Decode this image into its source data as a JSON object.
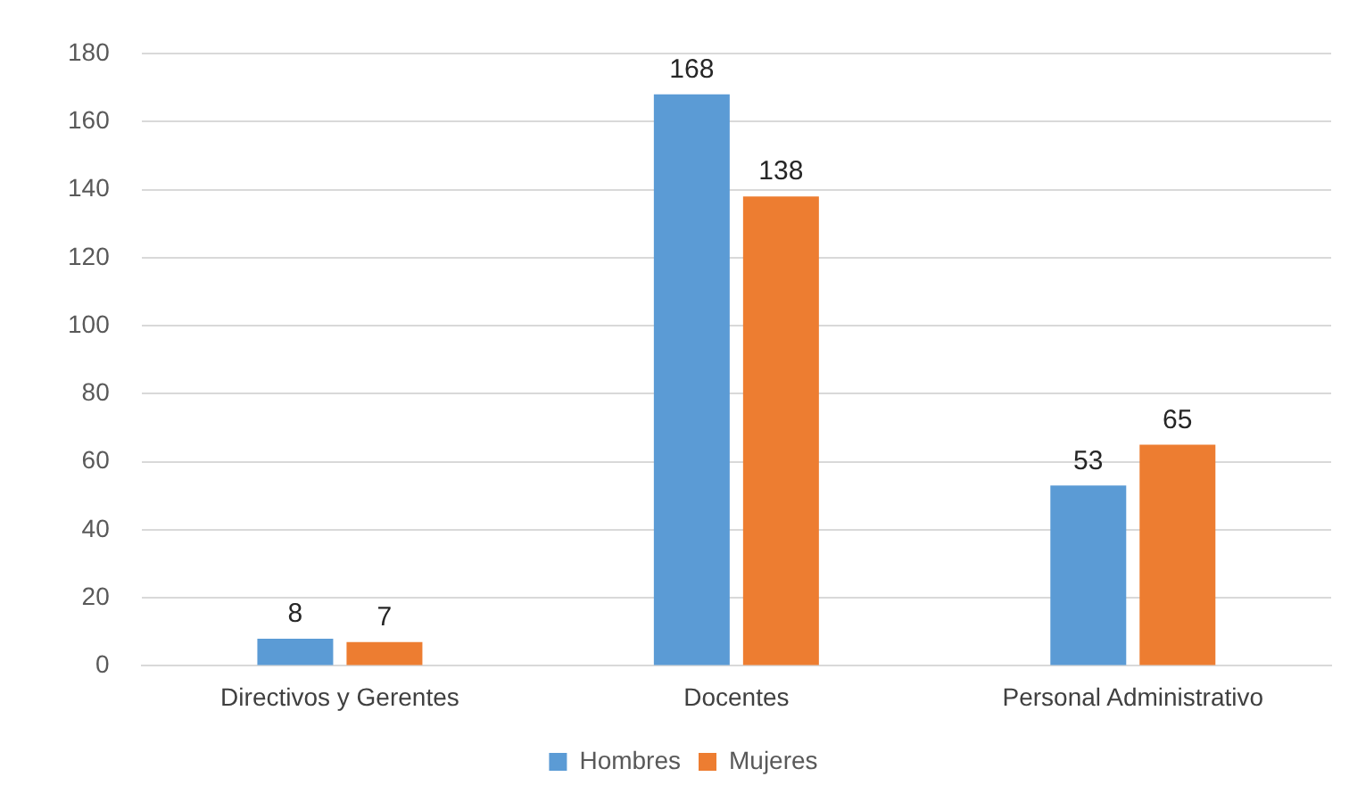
{
  "chart_data": {
    "type": "bar",
    "categories": [
      "Directivos y Gerentes",
      "Docentes",
      "Personal Administrativo"
    ],
    "series": [
      {
        "name": "Hombres",
        "color": "#5b9bd5",
        "values": [
          8,
          168,
          53
        ]
      },
      {
        "name": "Mujeres",
        "color": "#ed7d31",
        "values": [
          7,
          138,
          65
        ]
      }
    ],
    "ylim": [
      0,
      180
    ],
    "yticks": [
      0,
      20,
      40,
      60,
      80,
      100,
      120,
      140,
      160,
      180
    ],
    "grid": "y",
    "legend": "bottom",
    "data_labels": true
  }
}
